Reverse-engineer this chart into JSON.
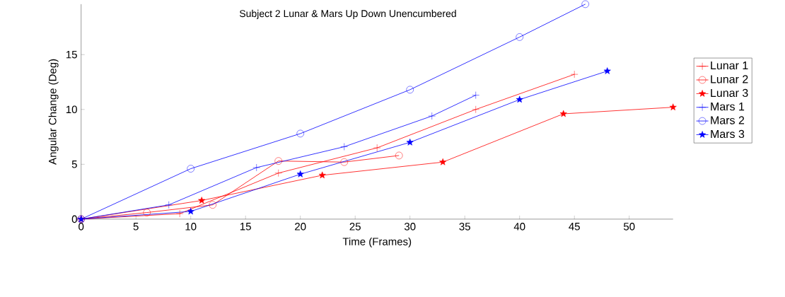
{
  "chart_data": {
    "type": "line",
    "title": "Subject 2 Lunar & Mars Up Down Unencumbered",
    "xlabel": "Time (Frames)",
    "ylabel": "Angular Change (Deg)",
    "xlim": [
      0,
      54
    ],
    "ylim": [
      0,
      19.6
    ],
    "xticks": [
      0,
      5,
      10,
      15,
      20,
      25,
      30,
      35,
      40,
      45,
      50
    ],
    "yticks": [
      0,
      5,
      10,
      15
    ],
    "legend": "right",
    "grid": false,
    "series": [
      {
        "name": "Lunar 1",
        "color": "#ff0000",
        "marker": "cross",
        "x": [
          0,
          9,
          18,
          27,
          36,
          45
        ],
        "values": [
          0,
          0.5,
          4.2,
          6.5,
          10.0,
          13.2
        ]
      },
      {
        "name": "Lunar 2",
        "color": "#ff0000",
        "marker": "circle",
        "x": [
          0,
          6,
          12,
          18,
          24,
          29
        ],
        "values": [
          0,
          0.6,
          1.3,
          5.3,
          5.2,
          5.8
        ]
      },
      {
        "name": "Lunar 3",
        "color": "#ff0000",
        "marker": "star",
        "x": [
          0,
          11,
          22,
          33,
          44,
          54
        ],
        "values": [
          0,
          1.7,
          4.0,
          5.2,
          9.6,
          10.2
        ]
      },
      {
        "name": "Mars 1",
        "color": "#0000ff",
        "marker": "cross",
        "x": [
          0,
          8,
          16,
          24,
          32,
          36
        ],
        "values": [
          0,
          1.3,
          4.7,
          6.6,
          9.4,
          11.3
        ]
      },
      {
        "name": "Mars 2",
        "color": "#0000ff",
        "marker": "circle",
        "x": [
          0,
          10,
          20,
          30,
          40,
          46
        ],
        "values": [
          0,
          4.6,
          7.8,
          11.8,
          16.6,
          19.6
        ]
      },
      {
        "name": "Mars 3",
        "color": "#0000ff",
        "marker": "star",
        "x": [
          0,
          10,
          20,
          30,
          40,
          48
        ],
        "values": [
          0,
          0.7,
          4.1,
          7.0,
          10.9,
          13.5
        ]
      }
    ]
  }
}
